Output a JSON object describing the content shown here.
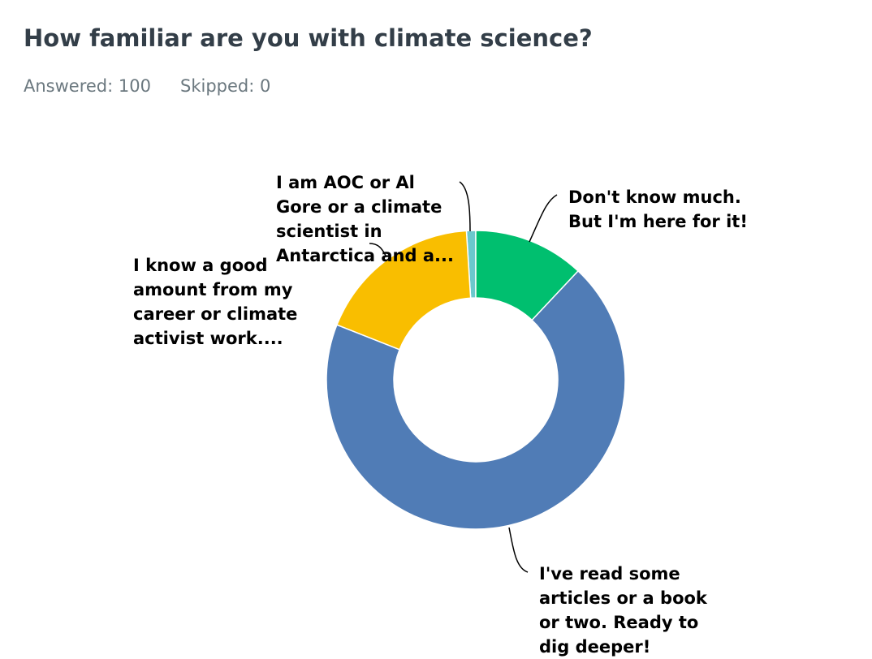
{
  "chart_data": {
    "type": "donut",
    "title": "How familiar are you with climate science?",
    "stats": [
      {
        "label": "Answered:",
        "value": 100
      },
      {
        "label": "Skipped:",
        "value": 0
      }
    ],
    "categories": [
      "Don't know much. But I'm here for it!",
      "I've read some articles or a book or two. Ready to dig deeper!",
      "I know a good amount from my career or climate activist work....",
      "I am AOC or Al Gore or a climate scientist in Antarctica and a..."
    ],
    "values": [
      12,
      69,
      18,
      1
    ],
    "colors": [
      "#00bf6f",
      "#507cb6",
      "#f9be00",
      "#6bc8cd"
    ]
  }
}
